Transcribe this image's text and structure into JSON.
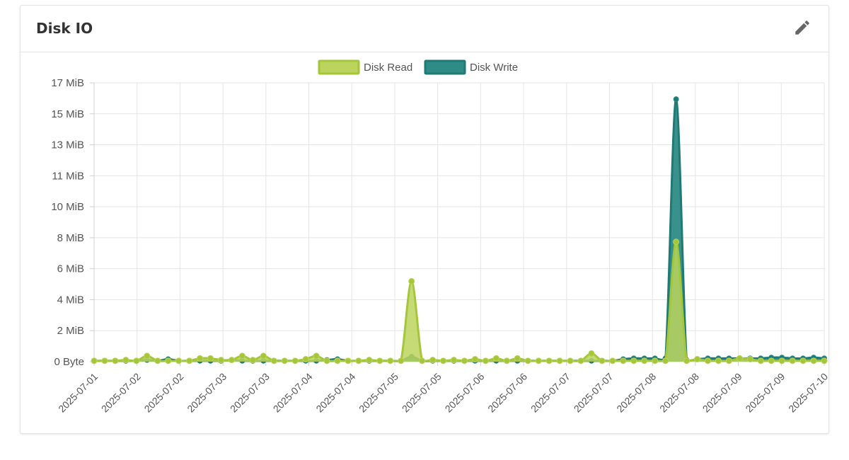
{
  "panel": {
    "title": "Disk IO",
    "edit_icon": "pencil-icon"
  },
  "colors": {
    "read_fill": "#bcd35e",
    "read_stroke": "#a4c639",
    "write_fill": "#2e8b86",
    "write_stroke": "#1f7a76"
  },
  "chart_data": {
    "type": "area",
    "y_unit": "MiB",
    "yticks": [
      "0 Byte",
      "2 MiB",
      "4 MiB",
      "6 MiB",
      "8 MiB",
      "10 MiB",
      "11 MiB",
      "13 MiB",
      "15 MiB",
      "17 MiB"
    ],
    "ylim": [
      0,
      17
    ],
    "xtick_labels": [
      "2025-07-01",
      "2025-07-02",
      "2025-07-02",
      "2025-07-03",
      "2025-07-03",
      "2025-07-04",
      "2025-07-04",
      "2025-07-05",
      "2025-07-05",
      "2025-07-06",
      "2025-07-06",
      "2025-07-07",
      "2025-07-07",
      "2025-07-08",
      "2025-07-08",
      "2025-07-09",
      "2025-07-09",
      "2025-07-10"
    ],
    "grid": true,
    "legend_position": "top-center",
    "series": [
      {
        "name": "Disk Read",
        "values": [
          0.05,
          0.05,
          0.05,
          0.1,
          0.05,
          0.35,
          0.05,
          0.05,
          0.05,
          0.05,
          0.2,
          0.2,
          0.1,
          0.1,
          0.35,
          0.1,
          0.35,
          0.05,
          0.05,
          0.05,
          0.15,
          0.35,
          0.05,
          0.05,
          0.05,
          0.05,
          0.1,
          0.05,
          0.05,
          0.05,
          4.9,
          0.05,
          0.1,
          0.05,
          0.1,
          0.05,
          0.15,
          0.05,
          0.2,
          0.05,
          0.2,
          0.05,
          0.05,
          0.05,
          0.05,
          0.05,
          0.05,
          0.5,
          0.05,
          0.05,
          0.05,
          0.05,
          0.05,
          0.05,
          0.05,
          7.3,
          0.05,
          0.15,
          0.05,
          0.05,
          0.05,
          0.2,
          0.15,
          0.05,
          0.05,
          0.05,
          0.05,
          0.05,
          0.05,
          0.05
        ]
      },
      {
        "name": "Disk Write",
        "values": [
          0.05,
          0.05,
          0.05,
          0.05,
          0.05,
          0.1,
          0.05,
          0.15,
          0.05,
          0.05,
          0.05,
          0.05,
          0.05,
          0.1,
          0.05,
          0.05,
          0.05,
          0.05,
          0.05,
          0.05,
          0.05,
          0.05,
          0.1,
          0.15,
          0.05,
          0.05,
          0.05,
          0.05,
          0.05,
          0.05,
          0.3,
          0.05,
          0.05,
          0.05,
          0.05,
          0.05,
          0.05,
          0.05,
          0.05,
          0.05,
          0.05,
          0.05,
          0.05,
          0.05,
          0.05,
          0.05,
          0.05,
          0.05,
          0.05,
          0.05,
          0.15,
          0.2,
          0.2,
          0.2,
          0.2,
          16.0,
          0.1,
          0.15,
          0.2,
          0.2,
          0.2,
          0.2,
          0.2,
          0.2,
          0.25,
          0.25,
          0.2,
          0.2,
          0.25,
          0.2
        ]
      }
    ]
  }
}
